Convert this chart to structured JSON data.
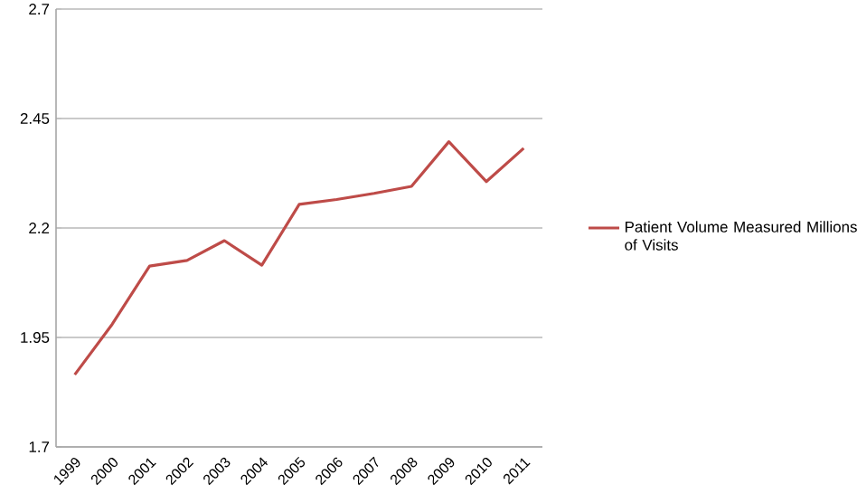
{
  "chart_data": {
    "type": "line",
    "categories": [
      "1999",
      "2000",
      "2001",
      "2002",
      "2003",
      "2004",
      "2005",
      "2006",
      "2007",
      "2008",
      "2009",
      "2010",
      "2011"
    ],
    "series": [
      {
        "name": "Patient Volume Measured Millions of Visits",
        "color": "#be4b48",
        "values": [
          1.865,
          1.98,
          2.113,
          2.126,
          2.171,
          2.115,
          2.254,
          2.265,
          2.279,
          2.295,
          2.397,
          2.306,
          2.382
        ]
      }
    ],
    "ylim": [
      1.7,
      2.7
    ],
    "yticks": [
      1.7,
      1.95,
      2.2,
      2.45,
      2.7
    ],
    "grid": "y",
    "legend": "right",
    "marker": "none",
    "line_style": "solid"
  }
}
